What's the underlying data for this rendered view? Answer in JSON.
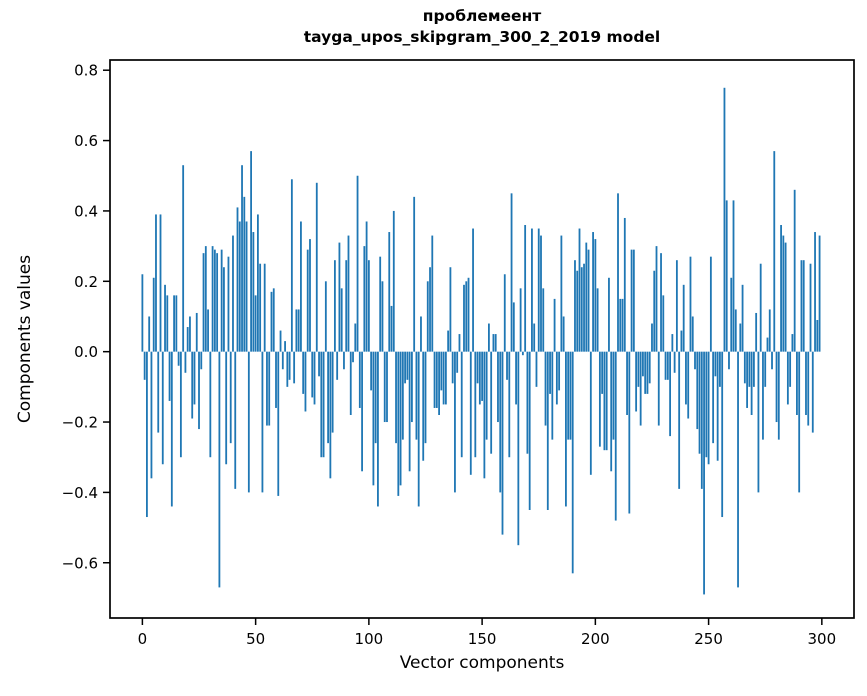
{
  "chart_data": {
    "type": "bar",
    "title": "проблемеент",
    "subtitle": "tayga_upos_skipgram_300_2_2019 model",
    "xlabel": "Vector components",
    "ylabel": "Components values",
    "bar_color": "#1f77b4",
    "axis_color": "#000000",
    "grid": false,
    "legend": null,
    "xlim": [
      -14.3,
      314.2
    ],
    "ylim": [
      -0.757,
      0.829
    ],
    "x_ticks": {
      "values": [
        0,
        50,
        100,
        150,
        200,
        250,
        300
      ],
      "labels": [
        "0",
        "50",
        "100",
        "150",
        "200",
        "250",
        "300"
      ]
    },
    "y_ticks": {
      "values": [
        0.8,
        0.6,
        0.4,
        0.2,
        0.0,
        -0.2,
        -0.4,
        -0.6
      ],
      "labels": [
        "0.8",
        "0.6",
        "0.4",
        "0.2",
        "0.0",
        "−0.2",
        "−0.4",
        "−0.6"
      ]
    },
    "x_start_index": 0,
    "values": [
      0.22,
      -0.08,
      -0.47,
      0.1,
      -0.36,
      0.21,
      0.39,
      -0.23,
      0.39,
      -0.32,
      0.19,
      0.16,
      -0.14,
      -0.44,
      0.16,
      0.16,
      -0.04,
      -0.3,
      0.53,
      -0.06,
      0.07,
      0.1,
      -0.19,
      -0.15,
      0.11,
      -0.22,
      -0.05,
      0.28,
      0.3,
      0.12,
      -0.3,
      0.3,
      0.29,
      0.28,
      -0.67,
      0.29,
      0.24,
      -0.32,
      0.27,
      -0.26,
      0.33,
      -0.39,
      0.41,
      0.37,
      0.53,
      0.44,
      0.37,
      -0.4,
      0.57,
      0.34,
      0.16,
      0.39,
      0.25,
      -0.4,
      0.25,
      -0.21,
      -0.21,
      0.17,
      0.18,
      -0.16,
      -0.41,
      0.06,
      -0.05,
      0.03,
      -0.1,
      -0.08,
      0.49,
      -0.09,
      0.12,
      0.12,
      0.37,
      -0.12,
      -0.17,
      0.29,
      0.32,
      -0.13,
      -0.15,
      0.48,
      -0.07,
      -0.3,
      -0.3,
      0.2,
      -0.26,
      -0.36,
      -0.23,
      0.26,
      -0.08,
      0.31,
      0.18,
      -0.05,
      0.26,
      0.33,
      -0.18,
      -0.03,
      0.08,
      0.5,
      -0.16,
      -0.34,
      0.3,
      0.37,
      0.26,
      -0.11,
      -0.38,
      -0.26,
      -0.44,
      0.27,
      0.2,
      -0.2,
      -0.2,
      0.34,
      0.13,
      0.4,
      -0.26,
      -0.41,
      -0.38,
      -0.25,
      -0.09,
      -0.08,
      -0.34,
      -0.2,
      0.44,
      -0.25,
      -0.44,
      0.1,
      -0.31,
      -0.26,
      0.2,
      0.24,
      0.33,
      -0.16,
      -0.16,
      -0.18,
      -0.11,
      -0.15,
      -0.15,
      0.06,
      0.24,
      -0.09,
      -0.4,
      -0.06,
      0.05,
      -0.3,
      0.19,
      0.2,
      0.21,
      -0.35,
      0.35,
      -0.3,
      -0.09,
      -0.15,
      -0.14,
      -0.36,
      -0.25,
      0.08,
      -0.29,
      0.05,
      0.05,
      -0.2,
      -0.4,
      -0.52,
      0.22,
      -0.08,
      -0.3,
      0.45,
      0.14,
      -0.15,
      -0.55,
      0.18,
      -0.01,
      0.36,
      -0.29,
      -0.45,
      0.35,
      0.08,
      -0.1,
      0.35,
      0.33,
      0.18,
      -0.21,
      -0.45,
      -0.12,
      -0.25,
      0.15,
      -0.15,
      -0.11,
      0.33,
      0.1,
      -0.44,
      -0.25,
      -0.25,
      -0.63,
      0.26,
      0.23,
      0.35,
      0.24,
      0.25,
      0.31,
      0.29,
      -0.35,
      0.34,
      0.32,
      0.18,
      -0.27,
      -0.12,
      -0.28,
      -0.28,
      0.21,
      -0.34,
      -0.25,
      -0.48,
      0.45,
      0.15,
      0.15,
      0.38,
      -0.18,
      -0.46,
      0.29,
      0.29,
      -0.17,
      -0.1,
      -0.21,
      -0.07,
      -0.12,
      -0.12,
      -0.09,
      0.08,
      0.23,
      0.3,
      -0.21,
      0.28,
      0.16,
      -0.08,
      -0.08,
      -0.24,
      0.05,
      -0.06,
      0.26,
      -0.39,
      0.06,
      0.19,
      -0.15,
      -0.19,
      0.27,
      0.1,
      -0.05,
      -0.22,
      -0.29,
      -0.39,
      -0.69,
      -0.3,
      -0.32,
      0.27,
      -0.26,
      -0.07,
      -0.31,
      -0.1,
      -0.47,
      0.75,
      0.43,
      -0.05,
      0.21,
      0.43,
      0.12,
      -0.67,
      0.08,
      0.19,
      -0.09,
      -0.16,
      -0.1,
      -0.18,
      -0.1,
      0.11,
      -0.4,
      0.25,
      -0.25,
      -0.1,
      0.04,
      0.12,
      -0.05,
      0.57,
      -0.2,
      -0.25,
      0.36,
      0.33,
      0.31,
      -0.15,
      -0.1,
      0.05,
      0.46,
      -0.18,
      -0.4,
      0.26,
      0.26,
      -0.18,
      -0.21,
      0.25,
      -0.23,
      0.34,
      0.09,
      0.33
    ]
  }
}
